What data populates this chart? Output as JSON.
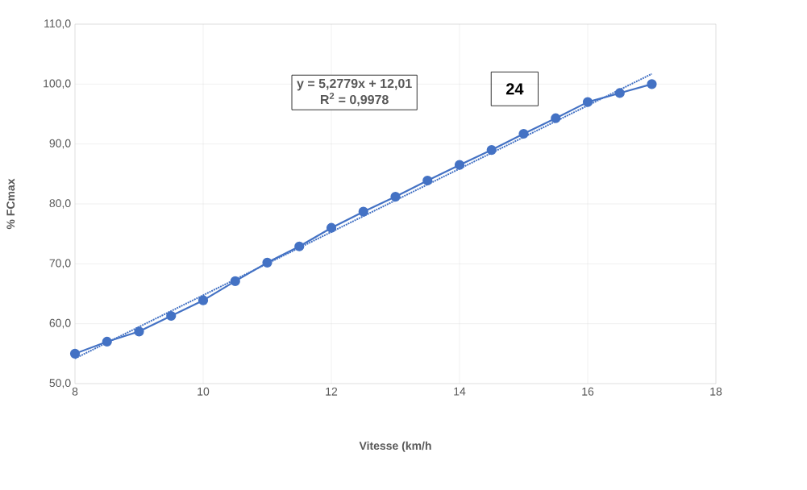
{
  "chart_data": {
    "type": "line",
    "xlabel": "Vitesse (km/h",
    "ylabel": "% FCmax",
    "x": [
      8,
      8.5,
      9,
      9.5,
      10,
      10.5,
      11,
      11.5,
      12,
      12.5,
      13,
      13.5,
      14,
      14.5,
      15,
      15.5,
      16,
      16.5,
      17
    ],
    "series": [
      {
        "color": "#4472c4",
        "marker": "circle",
        "line_style": "solid",
        "values": [
          55.0,
          57.0,
          58.7,
          61.3,
          63.9,
          67.1,
          70.2,
          72.9,
          76.0,
          78.7,
          81.2,
          83.9,
          86.5,
          89.0,
          91.7,
          94.3,
          97.0,
          98.5,
          100.0
        ]
      },
      {
        "type": "line",
        "color": "#4472c4",
        "marker": "none",
        "line_style": "dotted",
        "x": [
          8,
          17
        ],
        "values": [
          54.2,
          101.7
        ]
      }
    ],
    "xlim": [
      8,
      18
    ],
    "xticks": [
      8,
      10,
      12,
      14,
      16,
      18
    ],
    "ylim": [
      50,
      110
    ],
    "yticks": [
      {
        "value": 50,
        "label": "50,0"
      },
      {
        "value": 60,
        "label": "60,0"
      },
      {
        "value": 70,
        "label": "70,0"
      },
      {
        "value": 80,
        "label": "80,0"
      },
      {
        "value": 90,
        "label": "90,0"
      },
      {
        "value": 100,
        "label": "100,0"
      },
      {
        "value": 110,
        "label": "110,0"
      }
    ],
    "grid": true,
    "annotations": [
      "y = 5,2779x + 12,01",
      "R$^{2}$ = 0,9978",
      "24"
    ]
  }
}
